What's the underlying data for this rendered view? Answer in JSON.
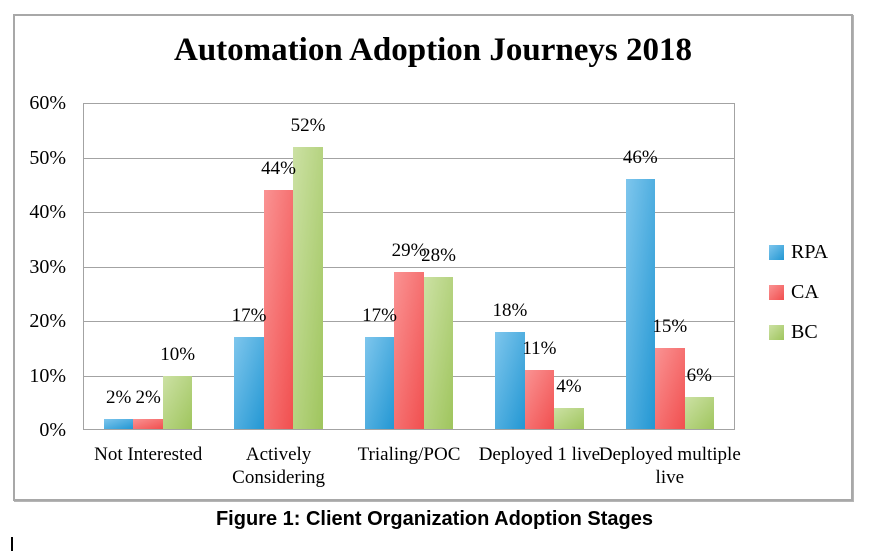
{
  "chart_data": {
    "type": "bar",
    "title": "Automation Adoption Journeys 2018",
    "categories": [
      "Not Interested",
      "Actively Considering",
      "Trialing/POC",
      "Deployed 1 live",
      "Deployed multiple live"
    ],
    "series": [
      {
        "name": "RPA",
        "color_light": "#7EC6ED",
        "color_dark": "#2397D3",
        "values": [
          2,
          17,
          17,
          18,
          46
        ]
      },
      {
        "name": "CA",
        "color_light": "#FA9393",
        "color_dark": "#F14F4F",
        "values": [
          2,
          44,
          29,
          11,
          15
        ]
      },
      {
        "name": "BC",
        "color_light": "#CCE1A4",
        "color_dark": "#9FC55D",
        "values": [
          10,
          52,
          28,
          4,
          6
        ]
      }
    ],
    "data_labels": [
      [
        "2%",
        "17%",
        "17%",
        "18%",
        "46%"
      ],
      [
        "2%",
        "44%",
        "29%",
        "11%",
        "15%"
      ],
      [
        "10%",
        "52%",
        "28%",
        "4%",
        "6%"
      ]
    ],
    "y_axis": {
      "min": 0,
      "max": 60,
      "step": 10,
      "tick_labels": [
        "60%",
        "50%",
        "40%",
        "30%",
        "20%",
        "10%",
        "0%"
      ],
      "gridline_color": "#a3a3a3"
    },
    "legend_position": "right",
    "grid": true
  },
  "caption": "Figure 1: Client Organization Adoption Stages"
}
